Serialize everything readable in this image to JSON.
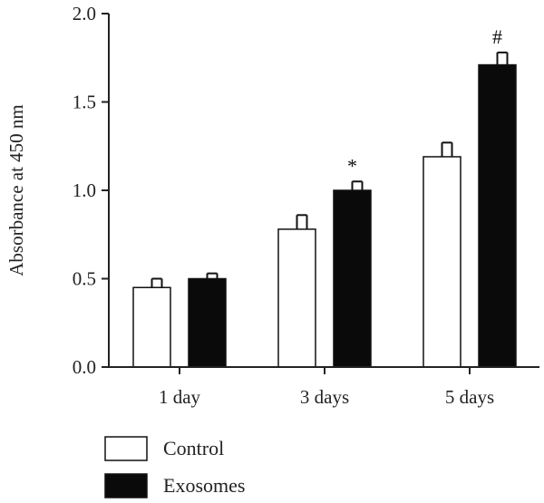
{
  "chart_data": {
    "type": "bar",
    "ylabel": "Absorbance at 450 nm",
    "ylim": [
      0.0,
      2.0
    ],
    "yticks": [
      "0.0",
      "0.5",
      "1.0",
      "1.5",
      "2.0"
    ],
    "categories": [
      "1 day",
      "3 days",
      "5 days"
    ],
    "series": [
      {
        "name": "Control",
        "values": [
          0.45,
          0.78,
          1.19
        ],
        "errors": [
          0.05,
          0.08,
          0.08
        ],
        "color": "#ffffff"
      },
      {
        "name": "Exosomes",
        "values": [
          0.5,
          1.0,
          1.71
        ],
        "errors": [
          0.03,
          0.05,
          0.07
        ],
        "color": "#0a0a0a"
      }
    ],
    "annotations": [
      {
        "category": "3 days",
        "series": "Exosomes",
        "text": "*"
      },
      {
        "category": "5 days",
        "series": "Exosomes",
        "text": "#"
      }
    ],
    "grid": false,
    "legend_position": "bottom-left"
  }
}
